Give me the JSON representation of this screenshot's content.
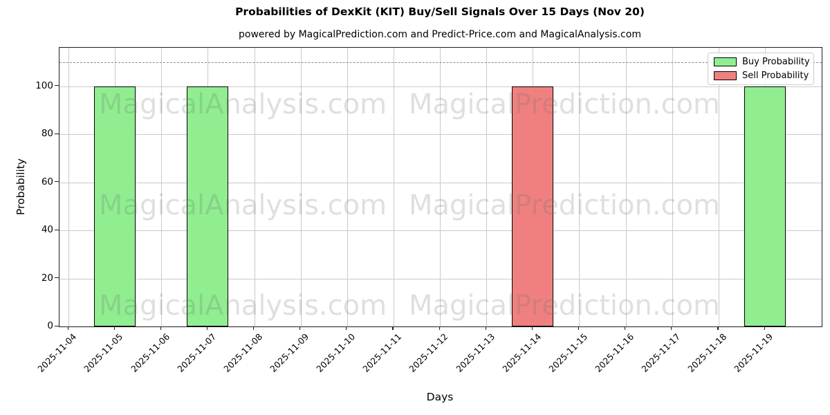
{
  "title": "Probabilities of DexKit (KIT) Buy/Sell Signals Over 15 Days (Nov 20)",
  "subtitle": "powered by MagicalPrediction.com and Predict-Price.com and MagicalAnalysis.com",
  "watermarks": {
    "left": "MagicalAnalysis.com",
    "right": "MagicalPrediction.com"
  },
  "colors": {
    "buy": "#90ee90",
    "sell": "#f08080",
    "bar_edge": "#000000",
    "grid": "#c9c9c9",
    "dashed_line": "#8a8a8a",
    "watermark": "rgba(110,110,110,0.22)"
  },
  "chart_data": {
    "type": "bar",
    "title": "Probabilities of DexKit (KIT) Buy/Sell Signals Over 15 Days (Nov 20)",
    "xlabel": "Days",
    "ylabel": "Probability",
    "categories": [
      "2025-11-04",
      "2025-11-05",
      "2025-11-06",
      "2025-11-07",
      "2025-11-08",
      "2025-11-09",
      "2025-11-10",
      "2025-11-11",
      "2025-11-12",
      "2025-11-13",
      "2025-11-14",
      "2025-11-15",
      "2025-11-16",
      "2025-11-17",
      "2025-11-18",
      "2025-11-19"
    ],
    "series": [
      {
        "name": "Buy Probability",
        "values": [
          0,
          100,
          0,
          100,
          0,
          0,
          0,
          0,
          0,
          0,
          0,
          0,
          0,
          0,
          0,
          100
        ]
      },
      {
        "name": "Sell Probability",
        "values": [
          0,
          0,
          0,
          0,
          0,
          0,
          0,
          0,
          0,
          0,
          100,
          0,
          0,
          0,
          0,
          0
        ]
      }
    ],
    "ylim": [
      0,
      116
    ],
    "yticks": [
      0,
      20,
      40,
      60,
      80,
      100
    ],
    "dashed_hline": 110,
    "grid": true,
    "legend_position": "upper right",
    "bar_width_fraction": 0.9
  }
}
